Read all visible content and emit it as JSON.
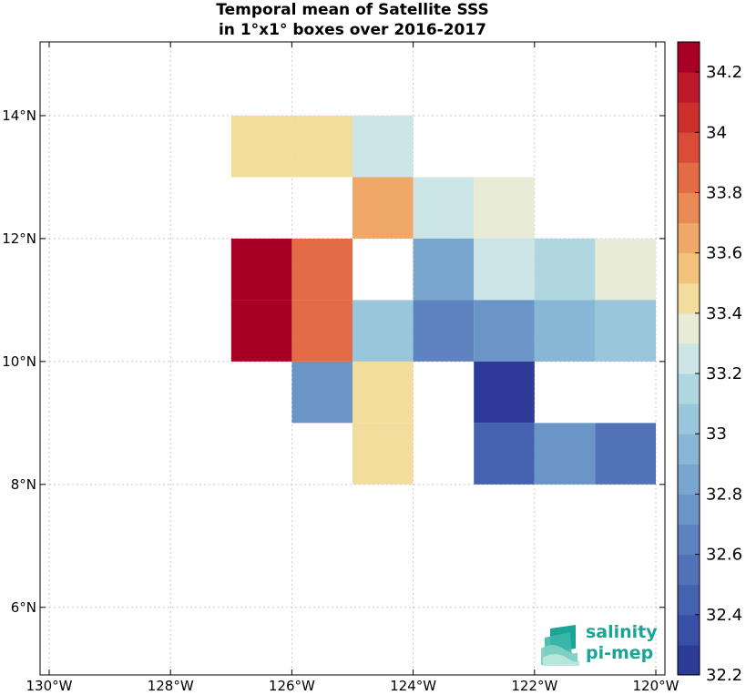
{
  "chart_data": {
    "type": "heatmap",
    "title_lines": [
      "Temporal mean of Satellite SSS",
      "in 1°x1° boxes over 2016-2017"
    ],
    "xlabel": "",
    "ylabel": "",
    "x_ticks": [
      {
        "value": -130,
        "label": "130°W"
      },
      {
        "value": -128,
        "label": "128°W"
      },
      {
        "value": -126,
        "label": "126°W"
      },
      {
        "value": -124,
        "label": "124°W"
      },
      {
        "value": -122,
        "label": "122°W"
      },
      {
        "value": -120,
        "label": "120°W"
      }
    ],
    "y_ticks": [
      {
        "value": 6,
        "label": "6°N"
      },
      {
        "value": 8,
        "label": "8°N"
      },
      {
        "value": 10,
        "label": "10°N"
      },
      {
        "value": 12,
        "label": "12°N"
      },
      {
        "value": 14,
        "label": "14°N"
      }
    ],
    "xlim": [
      -130.15,
      -119.85
    ],
    "ylim": [
      4.9,
      15.2
    ],
    "grid": true,
    "cells": [
      {
        "lon": -127,
        "lat": 13,
        "value": 33.45
      },
      {
        "lon": -126,
        "lat": 13,
        "value": 33.45
      },
      {
        "lon": -125,
        "lat": 13,
        "value": 33.25
      },
      {
        "lon": -125,
        "lat": 12,
        "value": 33.6
      },
      {
        "lon": -124,
        "lat": 12,
        "value": 33.25
      },
      {
        "lon": -123,
        "lat": 12,
        "value": 33.35
      },
      {
        "lon": -127,
        "lat": 11,
        "value": 34.2
      },
      {
        "lon": -126,
        "lat": 11,
        "value": 33.8
      },
      {
        "lon": -127,
        "lat": 10,
        "value": 34.2
      },
      {
        "lon": -126,
        "lat": 10,
        "value": 33.8
      },
      {
        "lon": -124,
        "lat": 11,
        "value": 32.85
      },
      {
        "lon": -123,
        "lat": 11,
        "value": 33.25
      },
      {
        "lon": -122,
        "lat": 11,
        "value": 33.15
      },
      {
        "lon": -121,
        "lat": 11,
        "value": 33.35
      },
      {
        "lon": -125,
        "lat": 10,
        "value": 33.05
      },
      {
        "lon": -124,
        "lat": 10,
        "value": 32.65
      },
      {
        "lon": -123,
        "lat": 10,
        "value": 32.75
      },
      {
        "lon": -122,
        "lat": 10,
        "value": 32.95
      },
      {
        "lon": -121,
        "lat": 10,
        "value": 33.05
      },
      {
        "lon": -126,
        "lat": 9,
        "value": 32.75
      },
      {
        "lon": -125,
        "lat": 9,
        "value": 33.45
      },
      {
        "lon": -123,
        "lat": 9,
        "value": 32.25
      },
      {
        "lon": -125,
        "lat": 8,
        "value": 33.45
      },
      {
        "lon": -123,
        "lat": 8,
        "value": 32.4
      },
      {
        "lon": -122,
        "lat": 8,
        "value": 32.7
      },
      {
        "lon": -121,
        "lat": 8,
        "value": 32.55
      }
    ],
    "colorbar": {
      "min": 32.2,
      "max": 34.3,
      "steps": [
        32.2,
        32.3,
        32.4,
        32.5,
        32.6,
        32.7,
        32.8,
        32.9,
        33.0,
        33.1,
        33.2,
        33.3,
        33.4,
        33.5,
        33.6,
        33.7,
        33.8,
        33.9,
        34.0,
        34.1,
        34.2
      ],
      "colors": [
        "#2d3a98",
        "#3750a5",
        "#4462b0",
        "#5272b8",
        "#5f83c0",
        "#6b94c7",
        "#78a6ce",
        "#88b6d5",
        "#9ac6dc",
        "#b0d6e0",
        "#cce6e8",
        "#e8ecd6",
        "#f3dd9d",
        "#f3c37c",
        "#efa868",
        "#ea8a56",
        "#e36b46",
        "#da4c37",
        "#cc302d",
        "#bc1a2b",
        "#a80025"
      ],
      "tick_values": [
        32.2,
        32.4,
        32.6,
        32.8,
        33,
        33.2,
        33.4,
        33.6,
        33.8,
        34,
        34.2
      ],
      "tick_labels": [
        "32.2",
        "32.4",
        "32.6",
        "32.8",
        "33",
        "33.2",
        "33.4",
        "33.6",
        "33.8",
        "34",
        "34.2"
      ]
    }
  },
  "logo": {
    "line1": "salinity",
    "line2": "pi-mep",
    "primary_color": "#1aa596",
    "secondary_color": "#7fd1c2"
  }
}
